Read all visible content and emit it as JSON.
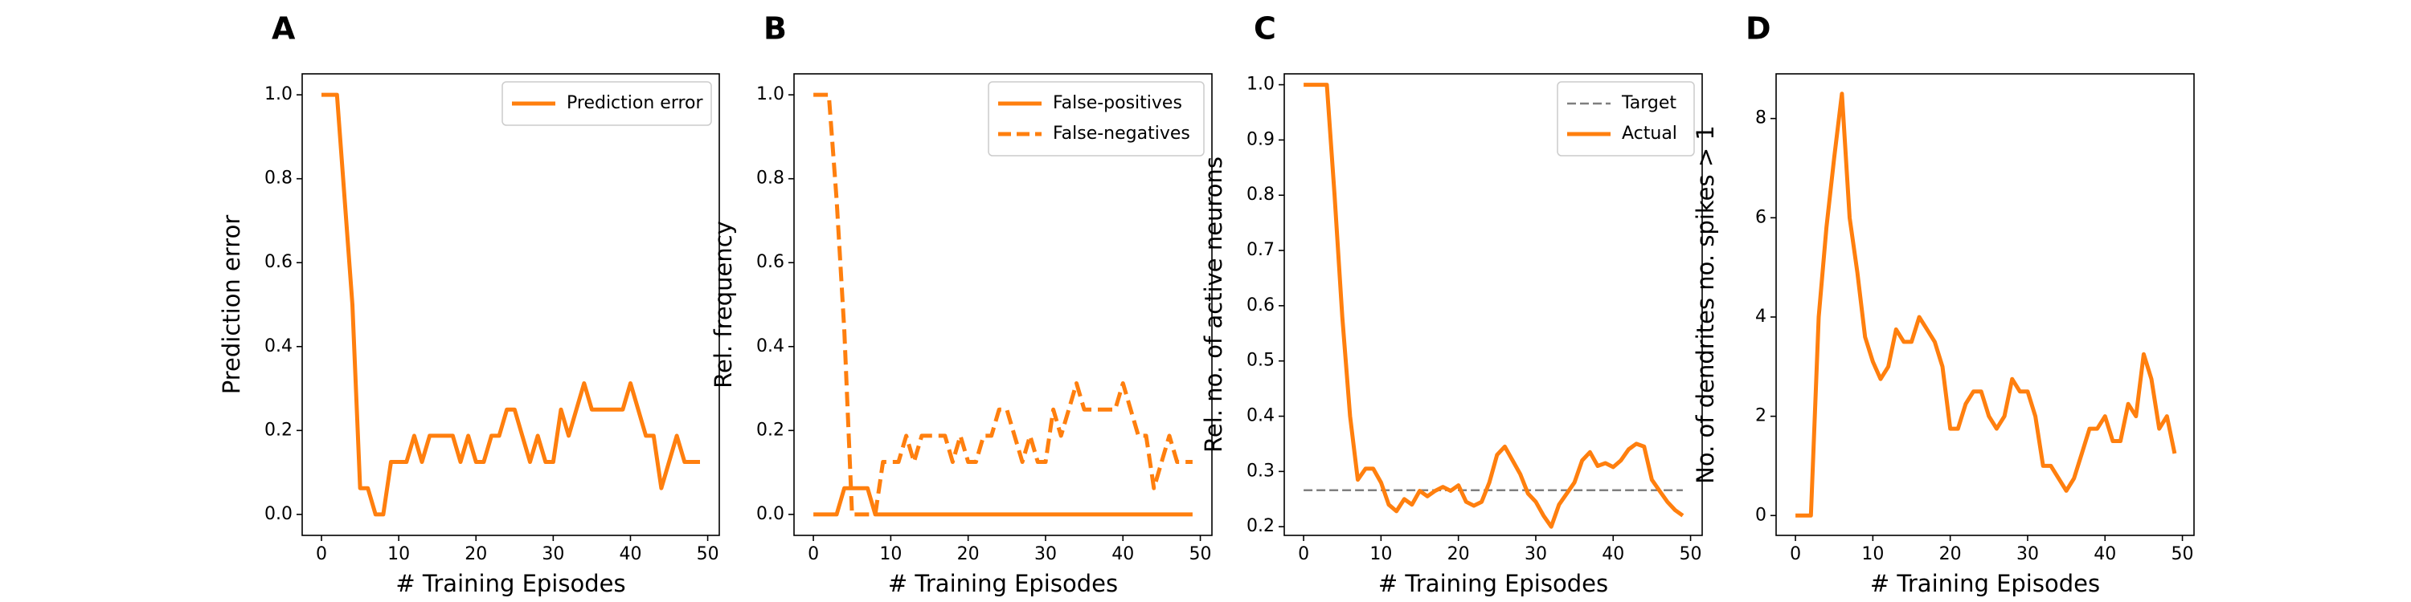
{
  "colors": {
    "orange": "#ff7f0e",
    "target": "#7f7f7f",
    "axis": "#000000"
  },
  "chart_data": [
    {
      "panel": "A",
      "type": "line",
      "xlabel": "# Training Episodes",
      "ylabel": "Prediction error",
      "xlim": [
        -2.5,
        51.5
      ],
      "ylim": [
        -0.05,
        1.05
      ],
      "xticks": [
        0,
        10,
        20,
        30,
        40,
        50
      ],
      "yticks": [
        0.0,
        0.2,
        0.4,
        0.6,
        0.8,
        1.0
      ],
      "ytick_labels": [
        "0.0",
        "0.2",
        "0.4",
        "0.6",
        "0.8",
        "1.0"
      ],
      "legend_position": "top-right",
      "x": [
        0,
        1,
        2,
        3,
        4,
        5,
        6,
        7,
        8,
        9,
        10,
        11,
        12,
        13,
        14,
        15,
        16,
        17,
        18,
        19,
        20,
        21,
        22,
        23,
        24,
        25,
        26,
        27,
        28,
        29,
        30,
        31,
        32,
        33,
        34,
        35,
        36,
        37,
        38,
        39,
        40,
        41,
        42,
        43,
        44,
        45,
        46,
        47,
        48,
        49
      ],
      "series": [
        {
          "name": "Prediction error",
          "style": "solid",
          "values": [
            1.0,
            1.0,
            1.0,
            0.75,
            0.5,
            0.0625,
            0.0625,
            0.0,
            0.0,
            0.125,
            0.125,
            0.125,
            0.1875,
            0.125,
            0.1875,
            0.1875,
            0.1875,
            0.1875,
            0.125,
            0.1875,
            0.125,
            0.125,
            0.1875,
            0.1875,
            0.25,
            0.25,
            0.1875,
            0.125,
            0.1875,
            0.125,
            0.125,
            0.25,
            0.1875,
            0.25,
            0.3125,
            0.25,
            0.25,
            0.25,
            0.25,
            0.25,
            0.3125,
            0.25,
            0.1875,
            0.1875,
            0.0625,
            0.125,
            0.1875,
            0.125,
            0.125,
            0.125
          ]
        }
      ]
    },
    {
      "panel": "B",
      "type": "line",
      "xlabel": "# Training Episodes",
      "ylabel": "Rel. frequency",
      "xlim": [
        -2.5,
        51.5
      ],
      "ylim": [
        -0.05,
        1.05
      ],
      "xticks": [
        0,
        10,
        20,
        30,
        40,
        50
      ],
      "yticks": [
        0.0,
        0.2,
        0.4,
        0.6,
        0.8,
        1.0
      ],
      "ytick_labels": [
        "0.0",
        "0.2",
        "0.4",
        "0.6",
        "0.8",
        "1.0"
      ],
      "legend_position": "top-right",
      "x": [
        0,
        1,
        2,
        3,
        4,
        5,
        6,
        7,
        8,
        9,
        10,
        11,
        12,
        13,
        14,
        15,
        16,
        17,
        18,
        19,
        20,
        21,
        22,
        23,
        24,
        25,
        26,
        27,
        28,
        29,
        30,
        31,
        32,
        33,
        34,
        35,
        36,
        37,
        38,
        39,
        40,
        41,
        42,
        43,
        44,
        45,
        46,
        47,
        48,
        49
      ],
      "series": [
        {
          "name": "False-positives",
          "style": "solid",
          "values": [
            0,
            0,
            0,
            0,
            0.0625,
            0.0625,
            0.0625,
            0.0625,
            0,
            0,
            0,
            0,
            0,
            0,
            0,
            0,
            0,
            0,
            0,
            0,
            0,
            0,
            0,
            0,
            0,
            0,
            0,
            0,
            0,
            0,
            0,
            0,
            0,
            0,
            0,
            0,
            0,
            0,
            0,
            0,
            0,
            0,
            0,
            0,
            0,
            0,
            0,
            0,
            0,
            0
          ]
        },
        {
          "name": "False-negatives",
          "style": "dashed",
          "values": [
            1.0,
            1.0,
            1.0,
            0.75,
            0.4375,
            0.0,
            0.0,
            0.0,
            0.0,
            0.125,
            0.125,
            0.125,
            0.1875,
            0.125,
            0.1875,
            0.1875,
            0.1875,
            0.1875,
            0.125,
            0.1875,
            0.125,
            0.125,
            0.1875,
            0.1875,
            0.25,
            0.25,
            0.1875,
            0.125,
            0.1875,
            0.125,
            0.125,
            0.25,
            0.1875,
            0.25,
            0.3125,
            0.25,
            0.25,
            0.25,
            0.25,
            0.25,
            0.3125,
            0.25,
            0.1875,
            0.1875,
            0.0625,
            0.125,
            0.1875,
            0.125,
            0.125,
            0.125
          ]
        }
      ]
    },
    {
      "panel": "C",
      "type": "line",
      "xlabel": "# Training Episodes",
      "ylabel": "Rel. no. of active neurons",
      "xlim": [
        -2.5,
        51.5
      ],
      "ylim": [
        0.1843,
        1.0197
      ],
      "xticks": [
        0,
        10,
        20,
        30,
        40,
        50
      ],
      "yticks": [
        0.2,
        0.3,
        0.4,
        0.5,
        0.6,
        0.7,
        0.8,
        0.9,
        1.0
      ],
      "ytick_labels": [
        "0.2",
        "0.3",
        "0.4",
        "0.5",
        "0.6",
        "0.7",
        "0.8",
        "0.9",
        "1.0"
      ],
      "legend_position": "top-right",
      "x": [
        0,
        1,
        2,
        3,
        4,
        5,
        6,
        7,
        8,
        9,
        10,
        11,
        12,
        13,
        14,
        15,
        16,
        17,
        18,
        19,
        20,
        21,
        22,
        23,
        24,
        25,
        26,
        27,
        28,
        29,
        30,
        31,
        32,
        33,
        34,
        35,
        36,
        37,
        38,
        39,
        40,
        41,
        42,
        43,
        44,
        45,
        46,
        47,
        48,
        49
      ],
      "series": [
        {
          "name": "Target",
          "style": "dashed-gray",
          "values": [
            0.266,
            0.266
          ],
          "x": [
            0,
            49
          ]
        },
        {
          "name": "Actual",
          "style": "solid",
          "values": [
            1.0,
            1.0,
            1.0,
            1.0,
            0.8,
            0.58,
            0.4,
            0.285,
            0.305,
            0.305,
            0.28,
            0.24,
            0.228,
            0.25,
            0.24,
            0.265,
            0.255,
            0.265,
            0.272,
            0.265,
            0.275,
            0.245,
            0.238,
            0.245,
            0.28,
            0.33,
            0.345,
            0.32,
            0.295,
            0.26,
            0.245,
            0.22,
            0.2,
            0.24,
            0.26,
            0.28,
            0.32,
            0.335,
            0.31,
            0.315,
            0.308,
            0.32,
            0.34,
            0.35,
            0.345,
            0.285,
            0.265,
            0.245,
            0.23,
            0.22
          ]
        }
      ]
    },
    {
      "panel": "D",
      "type": "line",
      "xlabel": "# Training Episodes",
      "ylabel": "No. of dendrites no. spikes > 1",
      "xlim": [
        -2.5,
        51.5
      ],
      "ylim": [
        -0.4,
        8.9
      ],
      "xticks": [
        0,
        10,
        20,
        30,
        40,
        50
      ],
      "yticks": [
        0,
        2,
        4,
        6,
        8
      ],
      "ytick_labels": [
        "0",
        "2",
        "4",
        "6",
        "8"
      ],
      "x": [
        0,
        1,
        2,
        3,
        4,
        5,
        6,
        7,
        8,
        9,
        10,
        11,
        12,
        13,
        14,
        15,
        16,
        17,
        18,
        19,
        20,
        21,
        22,
        23,
        24,
        25,
        26,
        27,
        28,
        29,
        30,
        31,
        32,
        33,
        34,
        35,
        36,
        37,
        38,
        39,
        40,
        41,
        42,
        43,
        44,
        45,
        46,
        47,
        48,
        49
      ],
      "series": [
        {
          "name": "",
          "style": "solid",
          "values": [
            0,
            0,
            0,
            4.0,
            5.8,
            7.2,
            8.5,
            6.0,
            4.9,
            3.6,
            3.1,
            2.75,
            3.0,
            3.75,
            3.5,
            3.5,
            4.0,
            3.75,
            3.5,
            3.0,
            1.75,
            1.75,
            2.25,
            2.5,
            2.5,
            2.0,
            1.75,
            2.0,
            2.75,
            2.5,
            2.5,
            2.0,
            1.0,
            1.0,
            0.75,
            0.5,
            0.75,
            1.25,
            1.75,
            1.75,
            2.0,
            1.5,
            1.5,
            2.25,
            2.0,
            3.25,
            2.75,
            1.75,
            2.0,
            1.25
          ]
        }
      ]
    }
  ]
}
